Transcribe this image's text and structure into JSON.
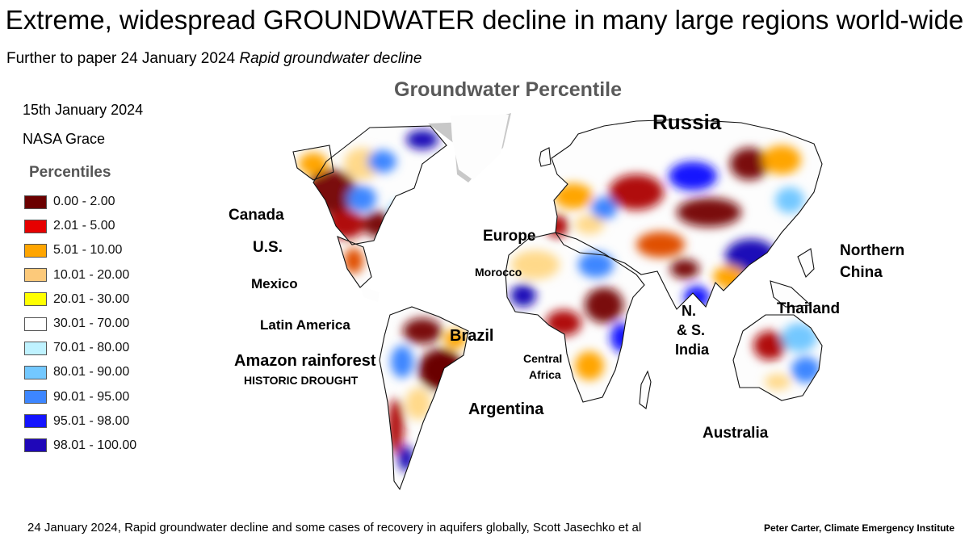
{
  "title": "Extreme, widespread GROUNDWATER decline in many large regions world-wide",
  "subtitle": {
    "prefix": "Further to paper 24 January 2024 ",
    "italic": "Rapid groundwater decline"
  },
  "map_title": "Groundwater Percentile",
  "date": "15th January 2024",
  "source": "NASA Grace",
  "legend": {
    "title": "Percentiles",
    "items": [
      {
        "label": "0.00 - 2.00",
        "color": "#6b0000"
      },
      {
        "label": "2.01 - 5.00",
        "color": "#e60000"
      },
      {
        "label": "5.01 - 10.00",
        "color": "#ffa500"
      },
      {
        "label": "10.01 - 20.00",
        "color": "#fcc97a"
      },
      {
        "label": "20.01 - 30.00",
        "color": "#ffff00"
      },
      {
        "label": "30.01 - 70.00",
        "color": "#ffffff"
      },
      {
        "label": "70.01 - 80.00",
        "color": "#bff2ff"
      },
      {
        "label": "80.01 - 90.00",
        "color": "#73c8ff"
      },
      {
        "label": "90.01 - 95.00",
        "color": "#3d86ff"
      },
      {
        "label": "95.01 - 98.00",
        "color": "#1414ff"
      },
      {
        "label": "98.01 - 100.00",
        "color": "#1f07b8"
      }
    ]
  },
  "map_labels": {
    "russia": "Russia",
    "canada": "Canada",
    "us": "U.S.",
    "mexico": "Mexico",
    "latin_america": "Latin America",
    "amazon": "Amazon rainforest",
    "historic_drought": "HISTORIC DROUGHT",
    "brazil": "Brazil",
    "argentina": "Argentina",
    "europe": "Europe",
    "morocco": "Morocco",
    "central": "Central",
    "africa": "Africa",
    "n": "N.",
    "and_s": "& S.",
    "india": "India",
    "thailand": "Thailand",
    "northern": "Northern",
    "china": "China",
    "australia": "Australia"
  },
  "footer": {
    "citation": "24 January 2024, Rapid groundwater decline and some cases of recovery in aquifers globally, Scott Jasechko et al",
    "credit": "Peter Carter, Climate Emergency Institute"
  }
}
